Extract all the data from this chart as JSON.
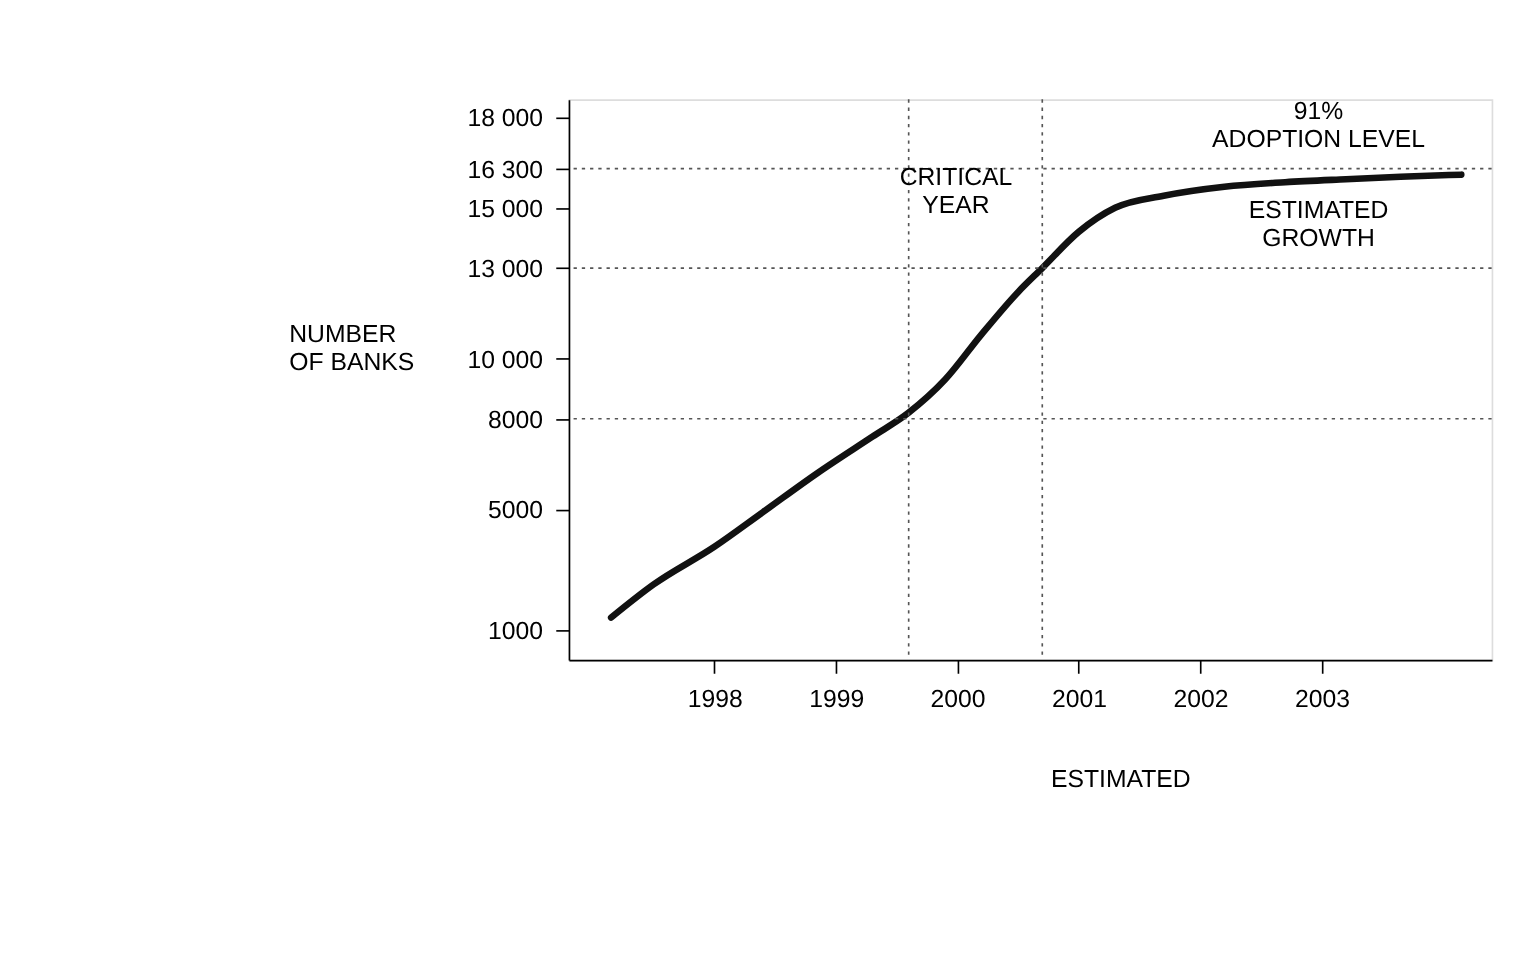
{
  "chart_data": {
    "type": "line",
    "ylabel": "NUMBER\nOF BANKS",
    "x": [
      1997.15,
      1997.5,
      1998,
      1998.4,
      1998.85,
      1999.3,
      1999.6,
      1999.9,
      2000.2,
      2000.5,
      2000.7,
      2001,
      2001.3,
      2001.7,
      2002.2,
      2002.7,
      2003.2,
      2003.65,
      2004.15
    ],
    "series": [
      {
        "color": "#111111",
        "values": [
          1400,
          2500,
          3750,
          4900,
          6200,
          7400,
          8200,
          9300,
          10800,
          12200,
          13000,
          14200,
          15000,
          15400,
          15700,
          15850,
          15950,
          16030,
          16100
        ]
      }
    ],
    "xlim": [
      1996.8,
      2004.4
    ],
    "xticks": [
      1998,
      1999,
      2000,
      2001,
      2002,
      2003
    ],
    "ylim": [
      0,
      18600
    ],
    "yticks": [
      {
        "value": 1000,
        "label": "1000"
      },
      {
        "value": 5000,
        "label": "5000"
      },
      {
        "value": 8000,
        "label": "8000"
      },
      {
        "value": 10000,
        "label": "10 000"
      },
      {
        "value": 13000,
        "label": "13 000"
      },
      {
        "value": 15000,
        "label": "15 000"
      },
      {
        "value": 16300,
        "label": "16 300"
      },
      {
        "value": 18000,
        "label": "18 000"
      }
    ],
    "ref_lines": [
      {
        "axis": "y",
        "value": 8000,
        "line_style": "dotted",
        "color": "#555555"
      },
      {
        "axis": "y",
        "value": 13000,
        "line_style": "dotted",
        "color": "#555555"
      },
      {
        "axis": "y",
        "value": 16300,
        "line_style": "dotted",
        "color": "#555555"
      },
      {
        "axis": "x",
        "value": 1999.6,
        "line_style": "dotted",
        "color": "#555555"
      },
      {
        "axis": "x",
        "value": 2000.7,
        "line_style": "dotted",
        "color": "#555555"
      }
    ],
    "annotations": [
      "91%\nADOPTION LEVEL",
      "CRITICAL\nYEAR",
      "ESTIMATED\nGROWTH",
      "ESTIMATED"
    ],
    "grid": false,
    "marker": "none",
    "line_style": "solid"
  }
}
